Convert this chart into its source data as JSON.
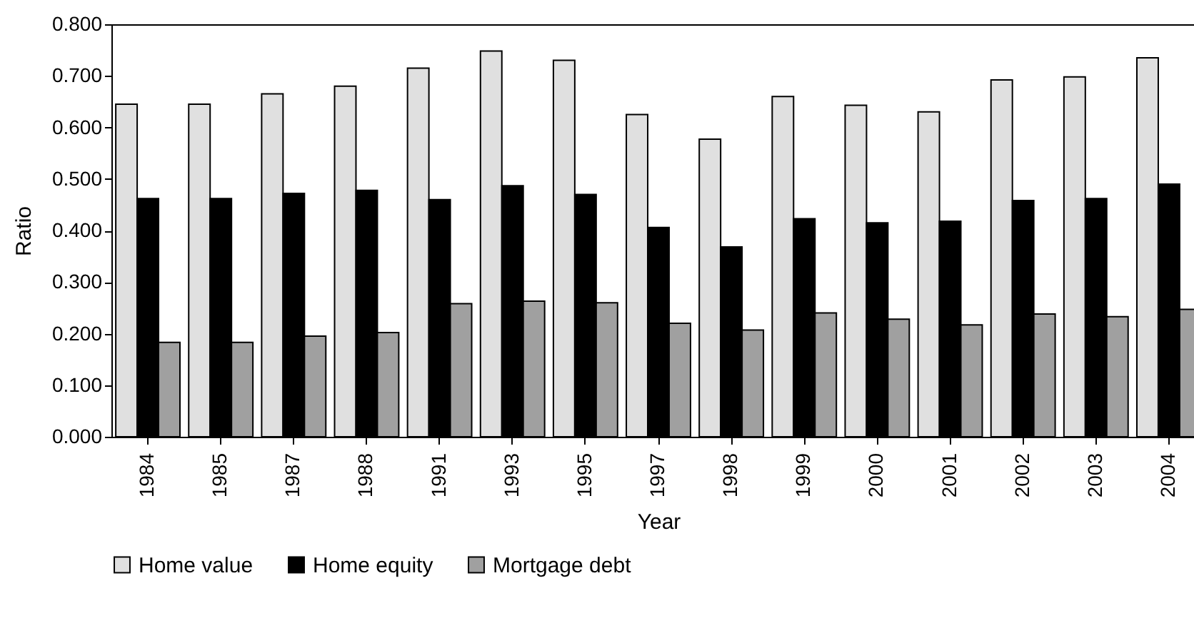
{
  "chart_data": {
    "type": "bar",
    "xlabel": "Year",
    "ylabel": "Ratio",
    "categories": [
      "1984",
      "1985",
      "1987",
      "1988",
      "1991",
      "1993",
      "1995",
      "1997",
      "1998",
      "1999",
      "2000",
      "2001",
      "2002",
      "2003",
      "2004"
    ],
    "series": [
      {
        "name": "Home value",
        "color": "#e0e0e0",
        "values": [
          0.645,
          0.645,
          0.665,
          0.68,
          0.715,
          0.748,
          0.73,
          0.625,
          0.577,
          0.66,
          0.643,
          0.63,
          0.692,
          0.698,
          0.735
        ]
      },
      {
        "name": "Home equity",
        "color": "#000000",
        "values": [
          0.462,
          0.462,
          0.472,
          0.478,
          0.46,
          0.487,
          0.47,
          0.406,
          0.368,
          0.423,
          0.415,
          0.418,
          0.458,
          0.462,
          0.49
        ]
      },
      {
        "name": "Mortgage debt",
        "color": "#a0a0a0",
        "values": [
          0.183,
          0.183,
          0.195,
          0.202,
          0.258,
          0.263,
          0.26,
          0.22,
          0.207,
          0.24,
          0.228,
          0.217,
          0.238,
          0.233,
          0.247
        ]
      }
    ],
    "ylim": [
      0,
      0.8
    ],
    "yticks": [
      {
        "value": 0,
        "label": "0.000"
      },
      {
        "value": 0.1,
        "label": "0.100"
      },
      {
        "value": 0.2,
        "label": "0.200"
      },
      {
        "value": 0.3,
        "label": "0.300"
      },
      {
        "value": 0.4,
        "label": "0.400"
      },
      {
        "value": 0.5,
        "label": "0.500"
      },
      {
        "value": 0.6,
        "label": "0.600"
      },
      {
        "value": 0.7,
        "label": "0.700"
      },
      {
        "value": 0.8,
        "label": "0.800"
      }
    ],
    "grid": false,
    "legend": "bottom"
  }
}
